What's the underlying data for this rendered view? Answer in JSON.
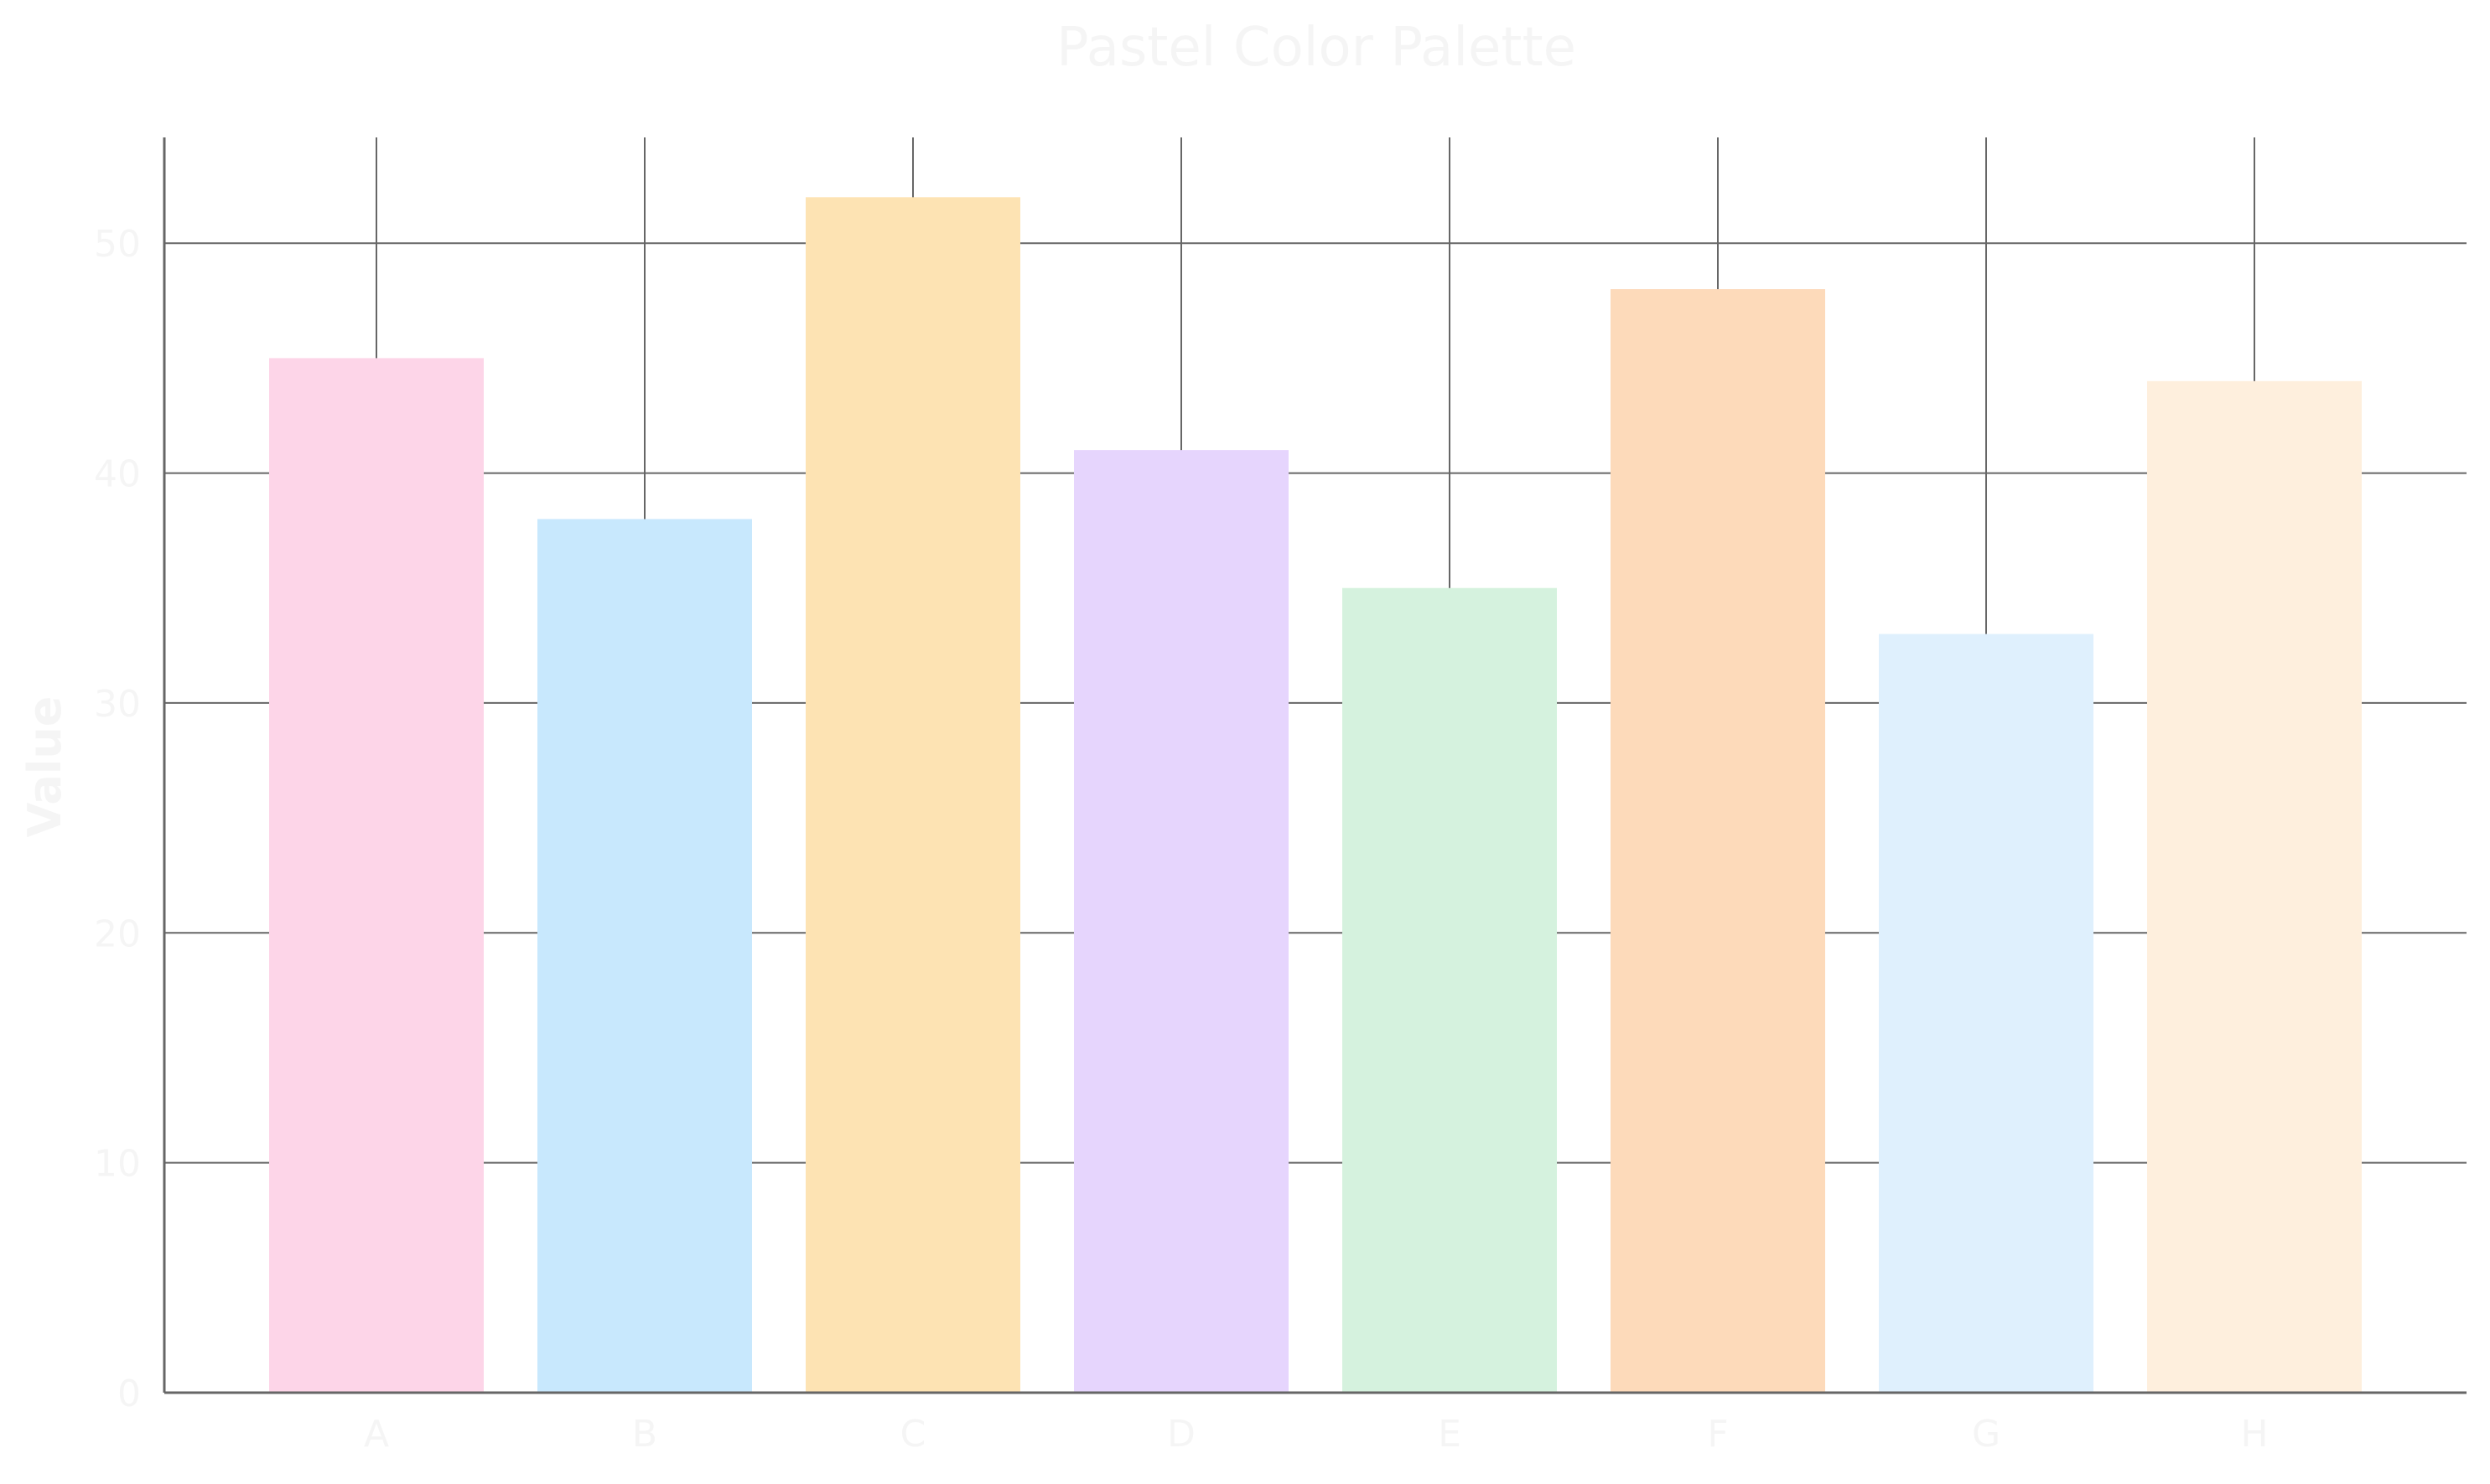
{
  "chart_data": {
    "type": "bar",
    "title": "Pastel Color Palette",
    "xlabel": "",
    "ylabel": "Value",
    "categories": [
      "A",
      "B",
      "C",
      "D",
      "E",
      "F",
      "G",
      "H"
    ],
    "values": [
      45,
      38,
      52,
      41,
      35,
      48,
      33,
      44
    ],
    "bar_colors": [
      "#FDD5E8",
      "#C8E8FD",
      "#FDE3B3",
      "#E6D5FD",
      "#D5F2DE",
      "#FDDABA",
      "#DFF0FD",
      "#FEEFDD"
    ],
    "ylim": [
      0,
      54.6
    ],
    "yticks": [
      0,
      10,
      20,
      30,
      40,
      50
    ],
    "grid": true,
    "legend": "none",
    "text_color": "#F5F5F5",
    "grid_color": "#666666",
    "axis_color": "#666666"
  }
}
